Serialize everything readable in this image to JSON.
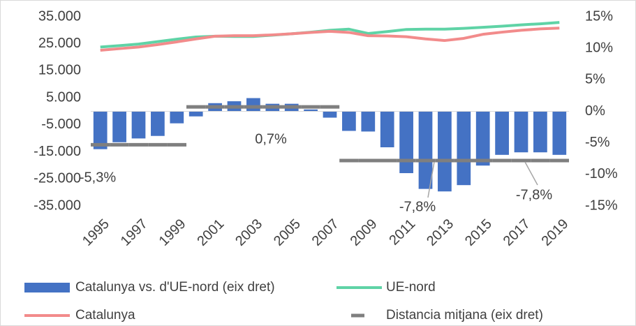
{
  "chart_data": {
    "type": "bar-line",
    "categories": [
      1995,
      null,
      1997,
      null,
      1999,
      null,
      2001,
      null,
      2003,
      null,
      2005,
      null,
      2007,
      null,
      2009,
      null,
      2011,
      null,
      2013,
      null,
      2015,
      null,
      2017,
      null,
      2019
    ],
    "series": [
      {
        "name": "Catalunya vs. d'UE-nord (eix dret)",
        "type": "bar",
        "axis": "y2",
        "color": "#4472c4",
        "values": [
          -6.0,
          -4.9,
          -4.3,
          -3.9,
          -1.9,
          -0.8,
          1.3,
          1.6,
          2.1,
          1.2,
          1.2,
          0.3,
          -1.0,
          -3.1,
          -3.2,
          -5.7,
          -9.8,
          -12.3,
          -12.7,
          -11.7,
          -8.6,
          -6.9,
          -6.5,
          -6.5,
          -6.9
        ]
      },
      {
        "name": "UE-nord",
        "type": "line",
        "color": "#5fd3a6",
        "values": [
          23800,
          24300,
          24900,
          25800,
          26700,
          27500,
          27800,
          27700,
          27700,
          28200,
          28700,
          29300,
          30000,
          30400,
          28800,
          29500,
          30300,
          30400,
          30400,
          30700,
          31100,
          31500,
          32000,
          32400,
          32900
        ]
      },
      {
        "name": "Catalunya",
        "type": "line",
        "color": "#f28b8b",
        "values": [
          22600,
          23200,
          23800,
          24700,
          25700,
          26800,
          27800,
          28000,
          28000,
          28300,
          28700,
          29200,
          29600,
          29200,
          28000,
          27900,
          27600,
          26800,
          26200,
          27000,
          28500,
          29300,
          30000,
          30500,
          30800
        ]
      },
      {
        "name": "Distancia mitjana (eix dret)",
        "type": "dash",
        "axis": "y2",
        "color": "#7f7f7f",
        "values": [
          -5.3,
          -5.3,
          -5.3,
          -5.3,
          -5.3,
          0.7,
          0.7,
          0.7,
          0.7,
          0.7,
          0.7,
          0.7,
          0.7,
          -7.8,
          -7.8,
          -7.8,
          -7.8,
          -7.8,
          -7.8,
          -7.8,
          -7.8,
          -7.8,
          -7.8,
          -7.8,
          -7.8
        ]
      }
    ],
    "annotations": [
      "-5,3%",
      "0,7%",
      "-7,8%",
      "-7,8%"
    ],
    "ylim": [
      -35000,
      35000
    ],
    "yticks": [
      {
        "value": 35000,
        "label": "35.000"
      },
      {
        "value": 25000,
        "label": "25.000"
      },
      {
        "value": 15000,
        "label": "15.000"
      },
      {
        "value": 5000,
        "label": "5.000"
      },
      {
        "value": -5000,
        "label": "-5.000"
      },
      {
        "value": -15000,
        "label": "-15.000"
      },
      {
        "value": -25000,
        "label": "-25.000"
      },
      {
        "value": -35000,
        "label": "-35.000"
      }
    ],
    "y2lim": [
      -15,
      15
    ],
    "y2ticks": [
      {
        "value": 15,
        "label": "15%"
      },
      {
        "value": 10,
        "label": "10%"
      },
      {
        "value": 5,
        "label": "5%"
      },
      {
        "value": 0,
        "label": "0%"
      },
      {
        "value": -5,
        "label": "-5%"
      },
      {
        "value": -10,
        "label": "-10%"
      },
      {
        "value": -15,
        "label": "-15%"
      }
    ],
    "legend": "bottom"
  }
}
